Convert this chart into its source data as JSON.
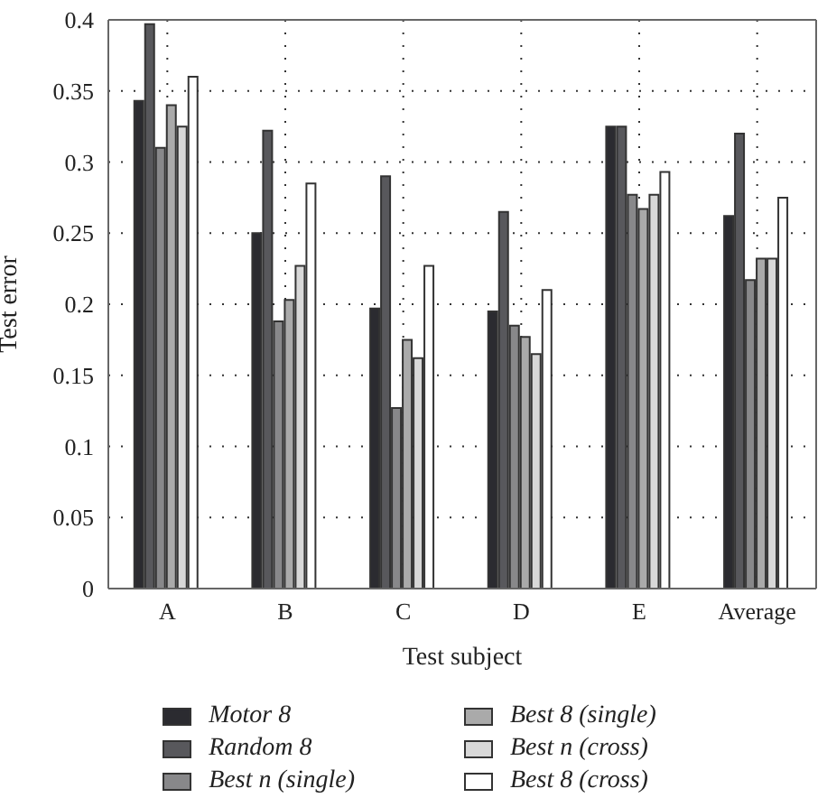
{
  "chart_data": {
    "type": "bar",
    "xlabel": "Test subject",
    "ylabel": "Test error",
    "categories": [
      "A",
      "B",
      "C",
      "D",
      "E",
      "Average"
    ],
    "series": [
      {
        "name": "Motor 8",
        "color": "#2b2b30",
        "values": [
          0.343,
          0.25,
          0.197,
          0.195,
          0.325,
          0.262
        ]
      },
      {
        "name": "Random 8",
        "color": "#58585c",
        "values": [
          0.397,
          0.322,
          0.29,
          0.265,
          0.325,
          0.32
        ]
      },
      {
        "name": "Best n (single)",
        "color": "#88888a",
        "values": [
          0.31,
          0.188,
          0.127,
          0.185,
          0.277,
          0.217
        ]
      },
      {
        "name": "Best 8 (single)",
        "color": "#aaaaaa",
        "values": [
          0.34,
          0.203,
          0.175,
          0.177,
          0.267,
          0.232
        ]
      },
      {
        "name": "Best n (cross)",
        "color": "#d8d8d8",
        "values": [
          0.325,
          0.227,
          0.162,
          0.165,
          0.277,
          0.232
        ]
      },
      {
        "name": "Best 8 (cross)",
        "color": "#ffffff",
        "values": [
          0.36,
          0.285,
          0.227,
          0.21,
          0.293,
          0.275
        ]
      }
    ],
    "ylim": [
      0,
      0.4
    ],
    "yticks": [
      0,
      0.05,
      0.1,
      0.15,
      0.2,
      0.25,
      0.3,
      0.35,
      0.4
    ],
    "grid": true,
    "legend": "bottom"
  }
}
